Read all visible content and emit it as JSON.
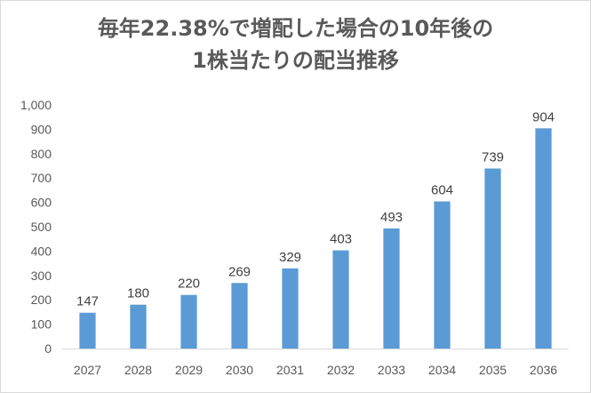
{
  "chart_data": {
    "type": "bar",
    "title_lines": [
      "毎年22.38%で増配した場合の10年後の",
      "1株当たりの配当推移"
    ],
    "xlabel": "",
    "ylabel": "",
    "categories": [
      "2027",
      "2028",
      "2029",
      "2030",
      "2031",
      "2032",
      "2033",
      "2034",
      "2035",
      "2036"
    ],
    "values": [
      147,
      180,
      220,
      269,
      329,
      403,
      493,
      604,
      739,
      904
    ],
    "data_labels": [
      "147",
      "180",
      "220",
      "269",
      "329",
      "403",
      "493",
      "604",
      "739",
      "904"
    ],
    "ylim": [
      0,
      1000
    ],
    "yticks": [
      0,
      100,
      200,
      300,
      400,
      500,
      600,
      700,
      800,
      900,
      1000
    ],
    "ytick_labels": [
      "0",
      "100",
      "200",
      "300",
      "400",
      "500",
      "600",
      "700",
      "800",
      "900",
      "1,000"
    ],
    "grid": false,
    "legend": "none",
    "bar_color": "#5b9bd5"
  }
}
